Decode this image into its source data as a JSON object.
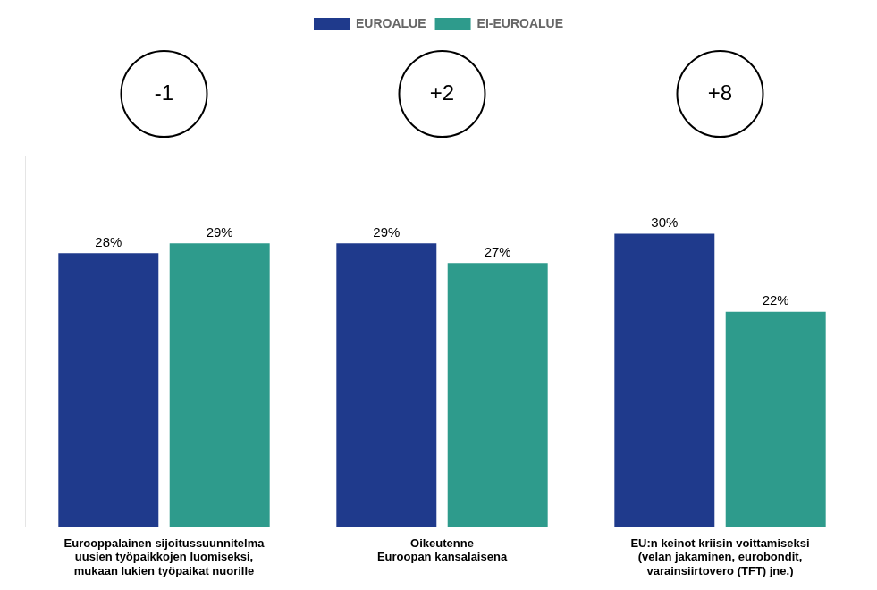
{
  "chart_data": {
    "type": "bar",
    "categories": [
      "Eurooppalainen sijoitussuunnitelma\nuusien työpaikkojen luomiseksi,\nmukaan lukien työpaikat nuorille",
      "Oikeutenne\nEuroopan kansalaisena",
      "EU:n keinot kriisin voittamiseksi\n(velan jakaminen, eurobondit,\nvarainsiirtovero (TFT) jne.)"
    ],
    "series": [
      {
        "name": "EUROALUE",
        "color": "#1F3A8C",
        "values": [
          28,
          29,
          30
        ],
        "value_labels": [
          "28%",
          "29%",
          "30%"
        ]
      },
      {
        "name": "EI-EUROALUE",
        "color": "#2E9B8C",
        "values": [
          29,
          27,
          22
        ],
        "value_labels": [
          "29%",
          "27%",
          "22%"
        ]
      }
    ],
    "ylim": [
      0,
      38
    ],
    "yticks": [],
    "grid": false,
    "legend": "top",
    "data_labels": true,
    "tick_labels": "x",
    "annotations": [
      {
        "category": "Eurooppalainen sijoitussuunnitelma\nuusien työpaikkojen luomiseksi,\nmukaan lukien työpaikat nuorille",
        "text": "-1"
      },
      {
        "category": "Oikeutenne\nEuroopan kansalaisena",
        "text": "+2"
      },
      {
        "category": "EU:n keinot kriisin voittamiseksi\n(velan jakaminen, eurobondit,\nvarainsiirtovero (TFT) jne.)",
        "text": "+8"
      }
    ]
  }
}
